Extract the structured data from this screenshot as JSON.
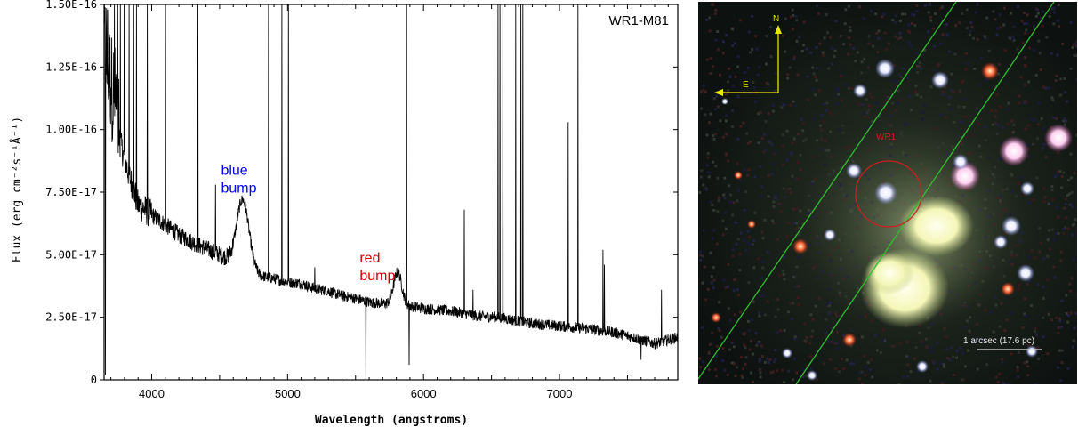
{
  "chart_data": {
    "type": "line",
    "title": "WR1-M81",
    "xlabel": "Wavelength (angstroms)",
    "ylabel": "Flux (erg cm⁻²s⁻¹Å⁻¹)",
    "xlim": [
      3650,
      7870
    ],
    "ylim": [
      0,
      1.5e-16
    ],
    "x_ticks": [
      4000,
      5000,
      6000,
      7000
    ],
    "x_tick_labels": [
      "4000",
      "5000",
      "6000",
      "7000"
    ],
    "y_ticks": [
      0,
      2.5e-17,
      5e-17,
      7.5e-17,
      1e-16,
      1.25e-16,
      1.5e-16
    ],
    "y_tick_labels": [
      "0",
      "2.50E-17",
      "5.00E-17",
      "7.50E-17",
      "1.00E-16",
      "1.25E-16",
      "1.50E-16"
    ],
    "grid": false,
    "continuum": [
      [
        3650,
        1.25e-16
      ],
      [
        3700,
        1.1e-16
      ],
      [
        3800,
        8.8e-17
      ],
      [
        3900,
        7e-17
      ],
      [
        4000,
        6.6e-17
      ],
      [
        4100,
        6.2e-17
      ],
      [
        4200,
        5.8e-17
      ],
      [
        4300,
        5.5e-17
      ],
      [
        4400,
        5.25e-17
      ],
      [
        4500,
        5e-17
      ],
      [
        4600,
        4.7e-17
      ],
      [
        4700,
        4.5e-17
      ],
      [
        4800,
        4.15e-17
      ],
      [
        4900,
        4.05e-17
      ],
      [
        5000,
        3.9e-17
      ],
      [
        5100,
        3.85e-17
      ],
      [
        5200,
        3.65e-17
      ],
      [
        5300,
        3.55e-17
      ],
      [
        5400,
        3.35e-17
      ],
      [
        5500,
        3.25e-17
      ],
      [
        5600,
        3.1e-17
      ],
      [
        5700,
        3.05e-17
      ],
      [
        5900,
        2.95e-17
      ],
      [
        6000,
        2.85e-17
      ],
      [
        6200,
        2.75e-17
      ],
      [
        6400,
        2.55e-17
      ],
      [
        6550,
        2.5e-17
      ],
      [
        6800,
        2.25e-17
      ],
      [
        7000,
        2.15e-17
      ],
      [
        7200,
        2.05e-17
      ],
      [
        7400,
        1.9e-17
      ],
      [
        7600,
        1.6e-17
      ],
      [
        7700,
        1.45e-17
      ],
      [
        7870,
        1.7e-17
      ]
    ],
    "broad_features": [
      {
        "name": "blue bump",
        "center": 4670,
        "peak": 7.2e-17,
        "width": 45
      },
      {
        "name": "red bump",
        "center": 5810,
        "peak": 4.3e-17,
        "width": 30
      }
    ],
    "emission_lines": [
      {
        "x": 3727,
        "y": 1.5e-16
      },
      {
        "x": 3750,
        "y": 1.5e-16
      },
      {
        "x": 3771,
        "y": 1.5e-16
      },
      {
        "x": 3798,
        "y": 1.5e-16
      },
      {
        "x": 3835,
        "y": 1.5e-16
      },
      {
        "x": 3869,
        "y": 1.5e-16
      },
      {
        "x": 3889,
        "y": 1.5e-16
      },
      {
        "x": 3968,
        "y": 1.5e-16
      },
      {
        "x": 4102,
        "y": 1.5e-16
      },
      {
        "x": 4340,
        "y": 1.5e-16
      },
      {
        "x": 4471,
        "y": 7.8e-17
      },
      {
        "x": 4861,
        "y": 1.5e-16
      },
      {
        "x": 4959,
        "y": 1.5e-16
      },
      {
        "x": 5007,
        "y": 1.5e-16
      },
      {
        "x": 5200,
        "y": 4.5e-17
      },
      {
        "x": 5876,
        "y": 1.5e-16
      },
      {
        "x": 6300,
        "y": 6.8e-17
      },
      {
        "x": 6364,
        "y": 3.6e-17
      },
      {
        "x": 6548,
        "y": 1.5e-16
      },
      {
        "x": 6563,
        "y": 1.5e-16
      },
      {
        "x": 6584,
        "y": 1.5e-16
      },
      {
        "x": 6678,
        "y": 1.5e-16
      },
      {
        "x": 6717,
        "y": 1.5e-16
      },
      {
        "x": 6731,
        "y": 1.5e-16
      },
      {
        "x": 7065,
        "y": 1.03e-16
      },
      {
        "x": 7136,
        "y": 1.5e-16
      },
      {
        "x": 7320,
        "y": 5.2e-17
      },
      {
        "x": 7330,
        "y": 4.6e-17
      },
      {
        "x": 7751,
        "y": 3.6e-17
      }
    ],
    "absorption_dips": [
      {
        "x": 5577,
        "y": 0
      },
      {
        "x": 5895,
        "y": 6e-18
      },
      {
        "x": 7600,
        "y": 8e-18
      },
      {
        "x": 3660,
        "y": 2e-18
      }
    ],
    "annotations": [
      {
        "text": "blue\nbump",
        "x": 4510,
        "y": 8.2e-17,
        "color": "#0000ff"
      },
      {
        "text": "red\nbump",
        "x": 5530,
        "y": 4.7e-17,
        "color": "#cc0000"
      }
    ]
  },
  "sky_image": {
    "compass": {
      "north": "N",
      "east": "E",
      "color": "#e6e600"
    },
    "source_label": "WR1",
    "source_color": "#cc0000",
    "slit_color": "#2fbf2f",
    "scale_bar_label": "1 arcsec (17.6 pc)"
  }
}
